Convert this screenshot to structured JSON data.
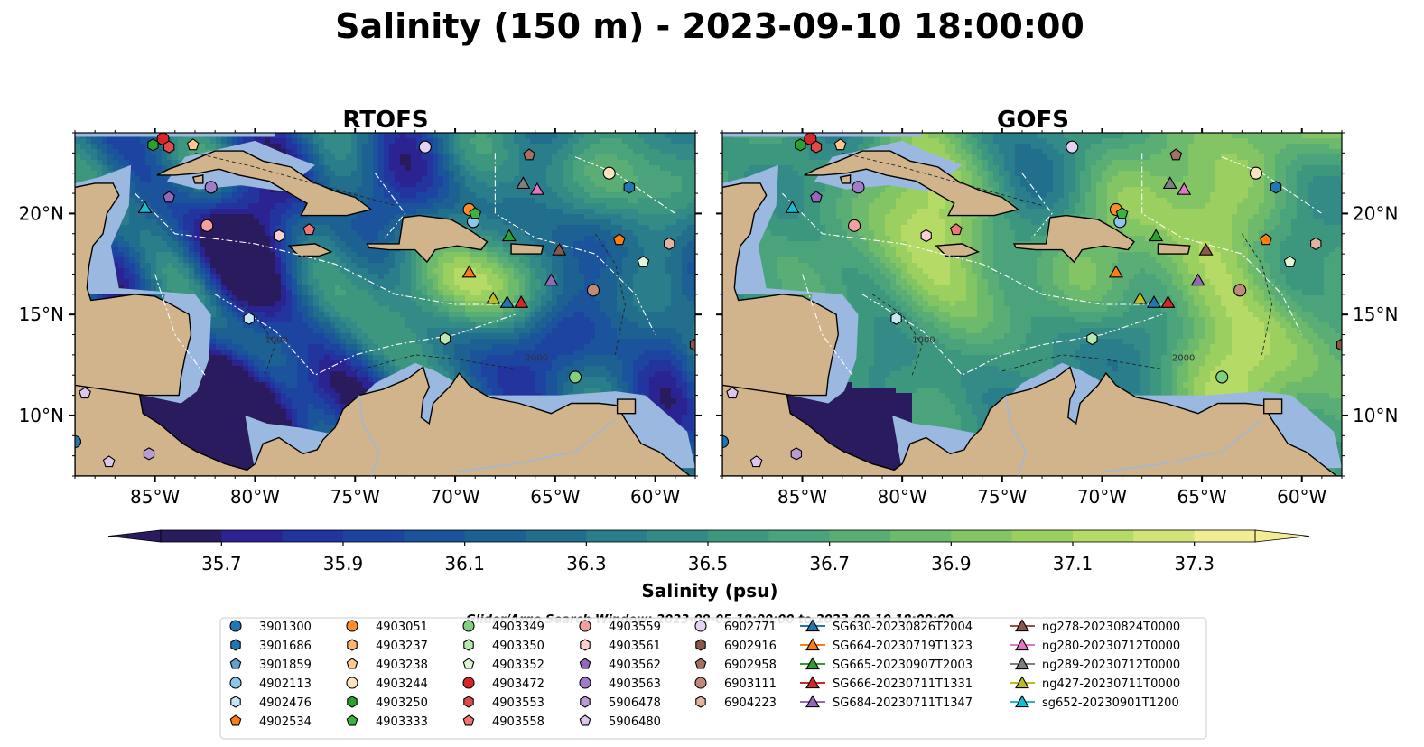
{
  "figure": {
    "title": "Salinity (150 m) - 2023-09-10 18:00:00",
    "search_window": "Glider/Argo Search Window: 2023-09-05 18:00:00 to 2023-09-10 18:00:00"
  },
  "chart_data": [
    {
      "type": "heatmap",
      "panel": "left",
      "title": "RTOFS",
      "lon_range": [
        -89,
        -58
      ],
      "lat_range": [
        7,
        24
      ],
      "x_ticks": [
        -85,
        -80,
        -75,
        -70,
        -65,
        -60
      ],
      "x_tick_labels": [
        "85°W",
        "80°W",
        "75°W",
        "70°W",
        "65°W",
        "60°W"
      ],
      "y_ticks": [
        10,
        15,
        20
      ],
      "y_tick_labels": [
        "10°N",
        "15°N",
        "20°N"
      ],
      "contour_labels": [
        "1000",
        "2000"
      ]
    },
    {
      "type": "heatmap",
      "panel": "right",
      "title": "GOFS",
      "lon_range": [
        -89,
        -58
      ],
      "lat_range": [
        7,
        24
      ],
      "x_ticks": [
        -85,
        -80,
        -75,
        -70,
        -65,
        -60
      ],
      "x_tick_labels": [
        "85°W",
        "80°W",
        "75°W",
        "70°W",
        "65°W",
        "60°W"
      ],
      "y_ticks": [
        10,
        15,
        20
      ],
      "y_tick_labels": [
        "10°N",
        "15°N",
        "20°N"
      ],
      "contour_labels": [
        "1000",
        "2000"
      ]
    }
  ],
  "colorbar": {
    "label": "Salinity (psu)",
    "min": 35.6,
    "max": 37.4,
    "step": 0.1,
    "extend": "both",
    "tick_values": [
      35.7,
      35.9,
      36.1,
      36.3,
      36.5,
      36.7,
      36.9,
      37.1,
      37.3
    ],
    "tick_labels": [
      "35.7",
      "35.9",
      "36.1",
      "36.3",
      "36.5",
      "36.7",
      "36.9",
      "37.1",
      "37.3"
    ],
    "colors": [
      "#2a1b5e",
      "#2b2391",
      "#23349e",
      "#1d44a0",
      "#1b539c",
      "#1c6192",
      "#216f8d",
      "#2a7d8a",
      "#338a86",
      "#3d977f",
      "#4aa37a",
      "#5aae75",
      "#6dba6d",
      "#83c565",
      "#9bd061",
      "#b6da66",
      "#d2e37a",
      "#f2ec94"
    ]
  },
  "land_color": "#d2b48c",
  "shelf_color": "#9ab8e0",
  "legend": {
    "columns": [
      [
        {
          "label": "3901300",
          "marker": "circle",
          "color": "#1f77b4"
        },
        {
          "label": "3901686",
          "marker": "hexagon",
          "color": "#1f77b4"
        },
        {
          "label": "3901859",
          "marker": "pentagon",
          "color": "#5fa2cf"
        },
        {
          "label": "4902113",
          "marker": "circle",
          "color": "#8cc6ea"
        },
        {
          "label": "4902476",
          "marker": "hexagon",
          "color": "#c7e6f5"
        },
        {
          "label": "4902534",
          "marker": "pentagon",
          "color": "#ff7f0e"
        }
      ],
      [
        {
          "label": "4903051",
          "marker": "circle",
          "color": "#ff8c2a"
        },
        {
          "label": "4903237",
          "marker": "hexagon",
          "color": "#ffb56b"
        },
        {
          "label": "4903238",
          "marker": "pentagon",
          "color": "#ffc98f"
        },
        {
          "label": "4903244",
          "marker": "circle",
          "color": "#ffe2bf"
        },
        {
          "label": "4903250",
          "marker": "hexagon",
          "color": "#2ca02c"
        },
        {
          "label": "4903333",
          "marker": "pentagon",
          "color": "#3cb43c"
        }
      ],
      [
        {
          "label": "4903349",
          "marker": "circle",
          "color": "#7fd17f"
        },
        {
          "label": "4903350",
          "marker": "hexagon",
          "color": "#b7e8b2"
        },
        {
          "label": "4903352",
          "marker": "pentagon",
          "color": "#dff7d6"
        },
        {
          "label": "4903472",
          "marker": "circle",
          "color": "#d62728"
        },
        {
          "label": "4903553",
          "marker": "hexagon",
          "color": "#e04a4a"
        },
        {
          "label": "4903558",
          "marker": "pentagon",
          "color": "#f07575"
        }
      ],
      [
        {
          "label": "4903559",
          "marker": "circle",
          "color": "#f5a0a0"
        },
        {
          "label": "4903561",
          "marker": "hexagon",
          "color": "#fcd0d0"
        },
        {
          "label": "4903562",
          "marker": "pentagon",
          "color": "#9467bd"
        },
        {
          "label": "4903563",
          "marker": "circle",
          "color": "#a17cc8"
        },
        {
          "label": "5906478",
          "marker": "hexagon",
          "color": "#b99bd6"
        },
        {
          "label": "5906480",
          "marker": "pentagon",
          "color": "#dcc6ee"
        }
      ],
      [
        {
          "label": "6902771",
          "marker": "circle",
          "color": "#e4d2f3"
        },
        {
          "label": "6902916",
          "marker": "hexagon",
          "color": "#8c564b"
        },
        {
          "label": "6902958",
          "marker": "pentagon",
          "color": "#a5705f"
        },
        {
          "label": "6903111",
          "marker": "circle",
          "color": "#c08a7a"
        },
        {
          "label": "6904223",
          "marker": "hexagon",
          "color": "#e2b3a2"
        }
      ],
      [
        {
          "label": "SG630-20230826T2004",
          "marker": "triangle",
          "color": "#1f77b4"
        },
        {
          "label": "SG664-20230719T1323",
          "marker": "triangle",
          "color": "#ff7f0e"
        },
        {
          "label": "SG665-20230907T2003",
          "marker": "triangle",
          "color": "#2ca02c"
        },
        {
          "label": "SG666-20230711T1331",
          "marker": "triangle",
          "color": "#d62728"
        },
        {
          "label": "SG684-20230711T1347",
          "marker": "triangle",
          "color": "#9467bd"
        }
      ],
      [
        {
          "label": "ng278-20230824T0000",
          "marker": "triangle",
          "color": "#8c564b"
        },
        {
          "label": "ng280-20230712T0000",
          "marker": "triangle",
          "color": "#e377c2"
        },
        {
          "label": "ng289-20230712T0000",
          "marker": "triangle",
          "color": "#7f7f7f"
        },
        {
          "label": "ng427-20230711T0000",
          "marker": "triangle",
          "color": "#bcbd22"
        },
        {
          "label": "sg652-20230901T1200",
          "marker": "triangle",
          "color": "#17becf"
        }
      ]
    ]
  },
  "observations": [
    {
      "id": "3901300",
      "lon": -89.0,
      "lat": 8.7
    },
    {
      "id": "3901686",
      "lon": -61.3,
      "lat": 21.3
    },
    {
      "id": "4902113",
      "lon": -69.1,
      "lat": 19.6
    },
    {
      "id": "4902476",
      "lon": -80.3,
      "lat": 14.8
    },
    {
      "id": "4903051",
      "lon": -69.3,
      "lat": 20.2
    },
    {
      "id": "4902534",
      "lon": -61.8,
      "lat": 18.7
    },
    {
      "id": "4903238",
      "lon": -83.1,
      "lat": 23.4
    },
    {
      "id": "4903244",
      "lon": -62.3,
      "lat": 22.0
    },
    {
      "id": "4903250",
      "lon": -85.1,
      "lat": 23.4
    },
    {
      "id": "4903333",
      "lon": -69.0,
      "lat": 20.0
    },
    {
      "id": "4903349",
      "lon": -64.0,
      "lat": 11.9
    },
    {
      "id": "4903350",
      "lon": -70.5,
      "lat": 13.8
    },
    {
      "id": "4903352",
      "lon": -60.6,
      "lat": 17.6
    },
    {
      "id": "4903472",
      "lon": -84.6,
      "lat": 23.7
    },
    {
      "id": "4903553",
      "lon": -84.3,
      "lat": 23.3
    },
    {
      "id": "4903558",
      "lon": -77.3,
      "lat": 19.2
    },
    {
      "id": "4903559",
      "lon": -82.4,
      "lat": 19.4
    },
    {
      "id": "4903561",
      "lon": -78.8,
      "lat": 18.9
    },
    {
      "id": "4903562",
      "lon": -84.3,
      "lat": 20.8
    },
    {
      "id": "4903563",
      "lon": -82.2,
      "lat": 21.3
    },
    {
      "id": "5906478",
      "lon": -85.3,
      "lat": 8.1
    },
    {
      "id": "5906480",
      "lon": -87.3,
      "lat": 7.7
    },
    {
      "id": "5906480",
      "lon": -88.5,
      "lat": 11.1
    },
    {
      "id": "6902771",
      "lon": -71.5,
      "lat": 23.3
    },
    {
      "id": "6902916",
      "lon": -58.0,
      "lat": 13.5
    },
    {
      "id": "6902958",
      "lon": -66.3,
      "lat": 22.9
    },
    {
      "id": "6903111",
      "lon": -63.1,
      "lat": 16.2
    },
    {
      "id": "6904223",
      "lon": -59.3,
      "lat": 18.5
    },
    {
      "id": "SG630-20230826T2004",
      "lon": -67.4,
      "lat": 15.6
    },
    {
      "id": "SG664-20230719T1323",
      "lon": -69.3,
      "lat": 17.1
    },
    {
      "id": "SG665-20230907T2003",
      "lon": -67.3,
      "lat": 18.9
    },
    {
      "id": "SG666-20230711T1331",
      "lon": -66.7,
      "lat": 15.6
    },
    {
      "id": "SG684-20230711T1347",
      "lon": -65.2,
      "lat": 16.7
    },
    {
      "id": "ng278-20230824T0000",
      "lon": -64.8,
      "lat": 18.2
    },
    {
      "id": "ng280-20230712T0000",
      "lon": -65.9,
      "lat": 21.2
    },
    {
      "id": "ng289-20230712T0000",
      "lon": -66.6,
      "lat": 21.5
    },
    {
      "id": "ng427-20230711T0000",
      "lon": -68.1,
      "lat": 15.8
    },
    {
      "id": "sg652-20230901T1200",
      "lon": -85.5,
      "lat": 20.3
    }
  ]
}
